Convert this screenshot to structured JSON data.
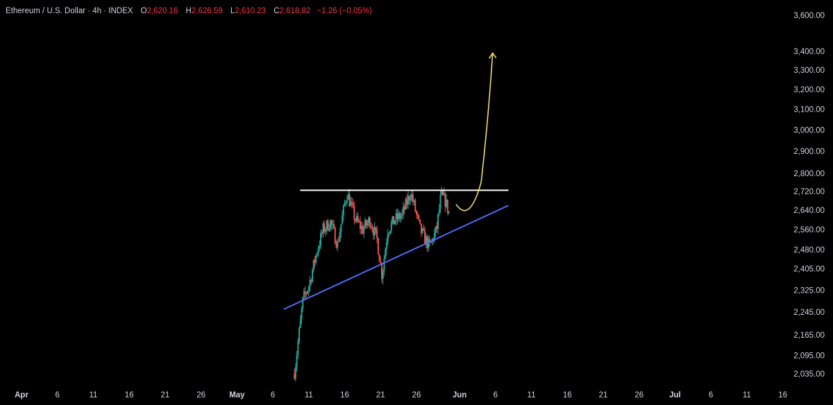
{
  "header": {
    "symbol": "Ethereum / U.S. Dollar · 4h · INDEX",
    "open_label": "O",
    "open": "2,620.16",
    "high_label": "H",
    "high": "2,626.59",
    "low_label": "L",
    "low": "2,610.23",
    "close_label": "C",
    "close": "2,618.82",
    "change": "−1.26 (−0.05%)"
  },
  "colors": {
    "background": "#000000",
    "up_candle": "#26a69a",
    "down_candle": "#ef5350",
    "resistance_line": "#ffffff",
    "support_line": "#4f6bff",
    "projection_arrow": "#f0e06a",
    "header_value": "#f23645"
  },
  "chart_data": {
    "type": "candlestick",
    "title": "Ethereum / U.S. Dollar · 4h · INDEX",
    "y_axis": {
      "side": "right",
      "tick_labels": [
        "3,600.00",
        "3,400.00",
        "3,300.00",
        "3,200.00",
        "3,100.00",
        "3,000.00",
        "2,900.00",
        "2,800.00",
        "2,720.00",
        "2,640.00",
        "2,560.00",
        "2,480.00",
        "2,405.00",
        "2,325.00",
        "2,245.00",
        "2,165.00",
        "2,095.00",
        "2,035.00"
      ],
      "ticks": [
        3600,
        3400,
        3300,
        3200,
        3100,
        3000,
        2900,
        2800,
        2720,
        2640,
        2560,
        2480,
        2405,
        2325,
        2245,
        2165,
        2095,
        2035
      ],
      "scale": "log",
      "range": [
        2015,
        3640
      ]
    },
    "x_axis": {
      "tick_labels": [
        "Apr",
        "6",
        "11",
        "16",
        "21",
        "26",
        "May",
        "6",
        "11",
        "16",
        "21",
        "26",
        "Jun",
        "6",
        "11",
        "16",
        "21",
        "26",
        "Jul",
        "6",
        "11",
        "16"
      ],
      "bold_labels": [
        "Apr",
        "May",
        "Jun",
        "Jul"
      ],
      "tick_days": [
        0,
        5,
        10,
        15,
        20,
        25,
        30,
        35,
        40,
        45,
        50,
        55,
        61,
        66,
        71,
        76,
        81,
        86,
        91,
        96,
        101,
        106
      ],
      "range_days": [
        -3,
        113
      ]
    },
    "candles_range_days": [
      38.0,
      59.6
    ],
    "key_points": [
      {
        "day": 38.0,
        "price": 2035
      },
      {
        "day": 38.6,
        "price": 2160
      },
      {
        "day": 39.2,
        "price": 2290
      },
      {
        "day": 40.0,
        "price": 2340
      },
      {
        "day": 41.2,
        "price": 2480
      },
      {
        "day": 42.0,
        "price": 2560
      },
      {
        "day": 43.0,
        "price": 2590
      },
      {
        "day": 44.0,
        "price": 2500
      },
      {
        "day": 45.3,
        "price": 2715
      },
      {
        "day": 46.5,
        "price": 2600
      },
      {
        "day": 47.5,
        "price": 2560
      },
      {
        "day": 48.5,
        "price": 2600
      },
      {
        "day": 49.5,
        "price": 2520
      },
      {
        "day": 50.2,
        "price": 2380
      },
      {
        "day": 51.0,
        "price": 2560
      },
      {
        "day": 52.0,
        "price": 2600
      },
      {
        "day": 53.0,
        "price": 2620
      },
      {
        "day": 54.2,
        "price": 2715
      },
      {
        "day": 55.5,
        "price": 2560
      },
      {
        "day": 56.8,
        "price": 2490
      },
      {
        "day": 57.8,
        "price": 2560
      },
      {
        "day": 58.4,
        "price": 2700
      },
      {
        "day": 59.0,
        "price": 2680
      },
      {
        "day": 59.6,
        "price": 2620
      }
    ],
    "drawings": {
      "resistance": {
        "price": 2725,
        "from_day": 38.8,
        "to_day": 67.8
      },
      "support": {
        "from": {
          "day": 36.5,
          "price": 2255
        },
        "to": {
          "day": 67.8,
          "price": 2660
        }
      },
      "projection_arrow": [
        {
          "day": 60.5,
          "price": 2665
        },
        {
          "day": 62.4,
          "price": 2635
        },
        {
          "day": 64.0,
          "price": 2760
        },
        {
          "day": 65.0,
          "price": 3050
        },
        {
          "day": 65.6,
          "price": 3390
        }
      ]
    }
  }
}
